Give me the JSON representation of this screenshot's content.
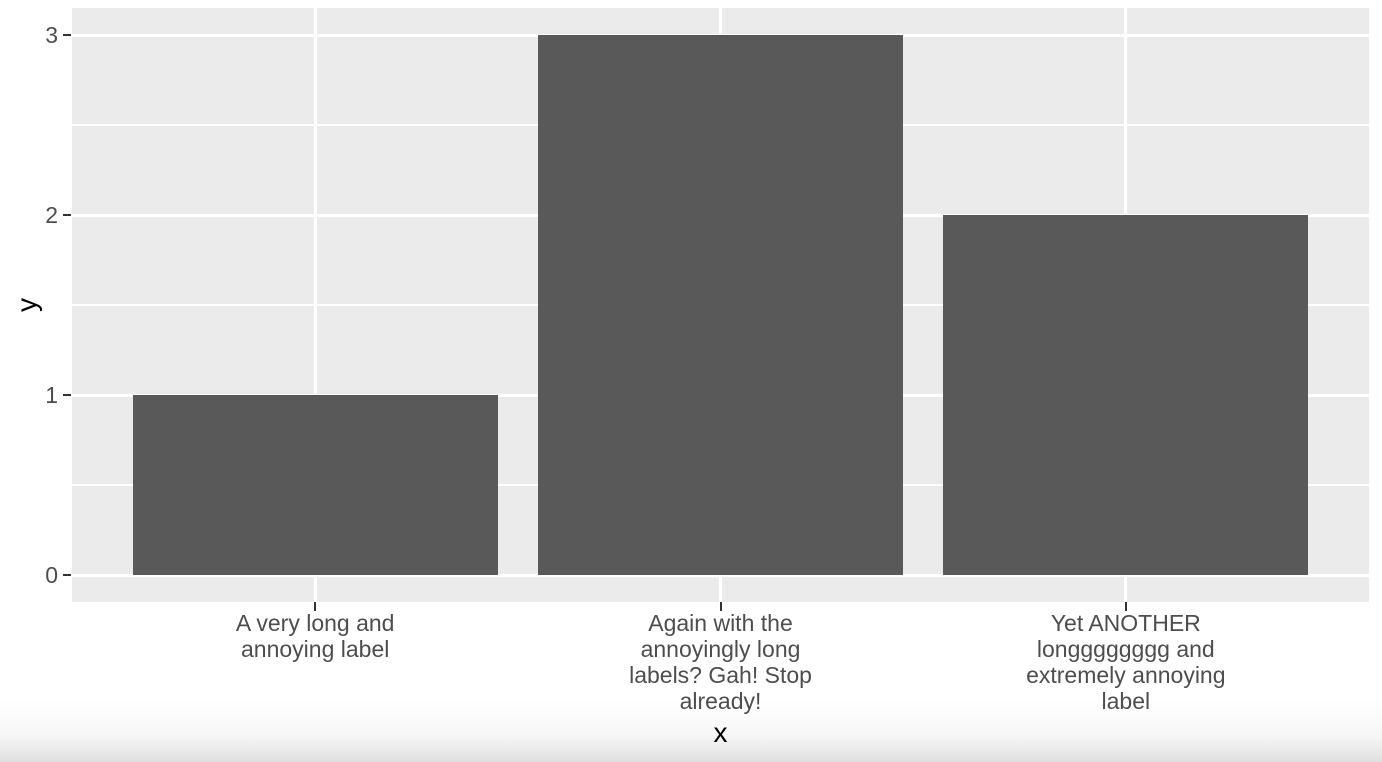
{
  "chart_data": {
    "type": "bar",
    "categories": [
      "A very long and annoying label",
      "Again with the annoyingly long labels? Gah! Stop already!",
      "Yet ANOTHER longggggggg and extremely annoying label"
    ],
    "categories_wrapped": [
      "A very long and\nannoying label",
      "Again with the\nannoyingly long\nlabels? Gah! Stop\nalready!",
      "Yet ANOTHER\nlongggggggg and\nextremely annoying\nlabel"
    ],
    "values": [
      1,
      3,
      2
    ],
    "xlabel": "x",
    "ylabel": "y",
    "yticks": [
      0,
      1,
      2,
      3
    ],
    "yticks_minor": [
      0.5,
      1.5,
      2.5
    ],
    "ylim": [
      -0.15,
      3.15
    ],
    "grid": true,
    "legend": false,
    "theme": "ggplot2-grey",
    "colors": {
      "bar_fill": "#595959",
      "panel_bg": "#EBEBEB",
      "grid_major": "#FFFFFF",
      "grid_minor": "#FFFFFF",
      "axis_text": "#4D4D4D",
      "axis_title": "#000000",
      "tick_mark": "#333333",
      "page_bg": "#FFFFFF"
    }
  }
}
